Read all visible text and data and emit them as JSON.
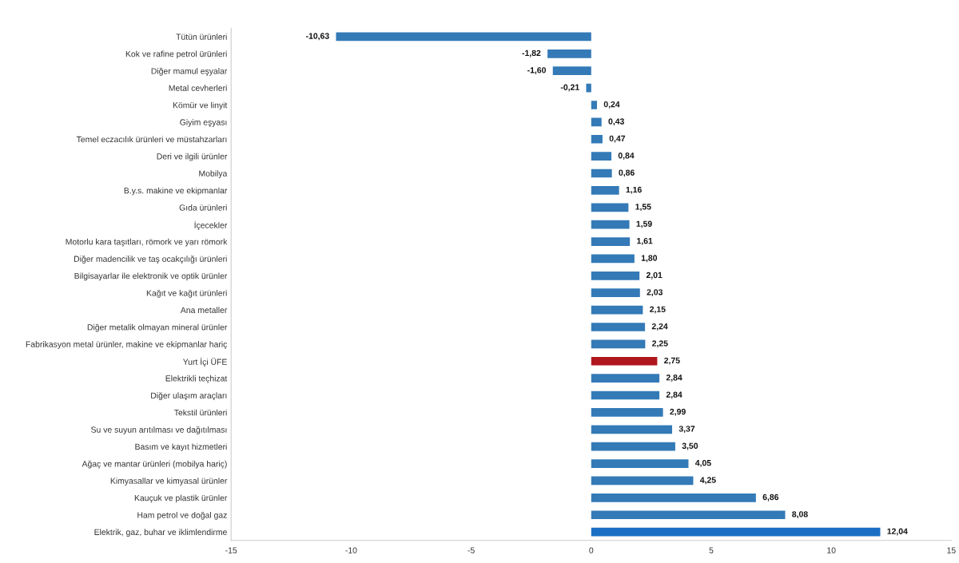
{
  "chart_data": {
    "type": "bar",
    "orientation": "horizontal",
    "categories": [
      "Tütün ürünleri",
      "Kok ve rafine petrol ürünleri",
      "Diğer mamul eşyalar",
      "Metal cevherleri",
      "Kömür ve linyit",
      "Giyim eşyası",
      "Temel eczacılık ürünleri ve müstahzarları",
      "Deri ve ilgili ürünler",
      "Mobilya",
      "B.y.s. makine ve ekipmanlar",
      "Gıda ürünleri",
      "İçecekler",
      "Motorlu kara taşıtları, römork ve yarı römork",
      "Diğer madencilik ve taş ocakçılığı ürünleri",
      "Bilgisayarlar ile elektronik ve optik ürünler",
      "Kağıt ve kağıt ürünleri",
      "Ana metaller",
      "Diğer metalik olmayan mineral ürünler",
      "Fabrikasyon metal ürünler, makine ve ekipmanlar hariç",
      "Yurt İçi ÜFE",
      "Elektrikli teçhizat",
      "Diğer ulaşım araçları",
      "Tekstil ürünleri",
      "Su ve suyun arıtılması ve dağıtılması",
      "Basım ve kayıt hizmetleri",
      "Ağaç ve mantar ürünleri (mobilya hariç)",
      "Kimyasallar ve kimyasal ürünler",
      "Kauçuk ve plastik ürünler",
      "Ham petrol ve doğal gaz",
      "Elektrik, gaz, buhar ve iklimlendirme"
    ],
    "values": [
      -10.63,
      -1.82,
      -1.6,
      -0.21,
      0.24,
      0.43,
      0.47,
      0.84,
      0.86,
      1.16,
      1.55,
      1.59,
      1.61,
      1.8,
      2.01,
      2.03,
      2.15,
      2.24,
      2.25,
      2.75,
      2.84,
      2.84,
      2.99,
      3.37,
      3.5,
      4.05,
      4.25,
      6.86,
      8.08,
      12.04
    ],
    "value_labels": [
      "-10,63",
      "-1,82",
      "-1,60",
      "-0,21",
      "0,24",
      "0,43",
      "0,47",
      "0,84",
      "0,86",
      "1,16",
      "1,55",
      "1,59",
      "1,61",
      "1,80",
      "2,01",
      "2,03",
      "2,15",
      "2,24",
      "2,25",
      "2,75",
      "2,84",
      "2,84",
      "2,99",
      "3,37",
      "3,50",
      "4,05",
      "4,25",
      "6,86",
      "8,08",
      "12,04"
    ],
    "colors": [
      "#337ab7",
      "#337ab7",
      "#337ab7",
      "#337ab7",
      "#337ab7",
      "#337ab7",
      "#337ab7",
      "#337ab7",
      "#337ab7",
      "#337ab7",
      "#337ab7",
      "#337ab7",
      "#337ab7",
      "#337ab7",
      "#337ab7",
      "#337ab7",
      "#337ab7",
      "#337ab7",
      "#337ab7",
      "#b0161e",
      "#337ab7",
      "#337ab7",
      "#337ab7",
      "#337ab7",
      "#337ab7",
      "#337ab7",
      "#337ab7",
      "#337ab7",
      "#337ab7",
      "#1a6fc4"
    ],
    "xlim": [
      -15,
      15
    ],
    "xticks": [
      -15,
      -10,
      -5,
      0,
      5,
      10,
      15
    ],
    "grid": false,
    "legend": false
  }
}
